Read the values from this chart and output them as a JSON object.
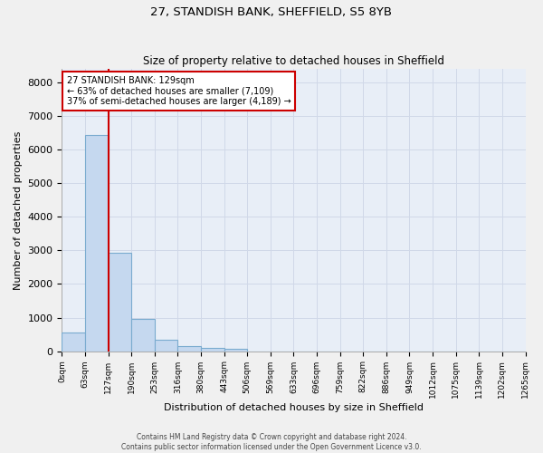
{
  "title1": "27, STANDISH BANK, SHEFFIELD, S5 8YB",
  "title2": "Size of property relative to detached houses in Sheffield",
  "xlabel": "Distribution of detached houses by size in Sheffield",
  "ylabel": "Number of detached properties",
  "bar_values": [
    557,
    6440,
    2920,
    970,
    340,
    160,
    100,
    65,
    0,
    0,
    0,
    0,
    0,
    0,
    0,
    0,
    0,
    0,
    0,
    0
  ],
  "bar_labels": [
    "0sqm",
    "63sqm",
    "127sqm",
    "190sqm",
    "253sqm",
    "316sqm",
    "380sqm",
    "443sqm",
    "506sqm",
    "569sqm",
    "633sqm",
    "696sqm",
    "759sqm",
    "822sqm",
    "886sqm",
    "949sqm",
    "1012sqm",
    "1075sqm",
    "1139sqm",
    "1202sqm",
    "1265sqm"
  ],
  "bar_color": "#c5d8ef",
  "bar_edge_color": "#7aabcf",
  "annotation_text_line1": "27 STANDISH BANK: 129sqm",
  "annotation_text_line2": "← 63% of detached houses are smaller (7,109)",
  "annotation_text_line3": "37% of semi-detached houses are larger (4,189) →",
  "annotation_box_color": "#cc0000",
  "ylim": [
    0,
    8400
  ],
  "yticks": [
    0,
    1000,
    2000,
    3000,
    4000,
    5000,
    6000,
    7000,
    8000
  ],
  "grid_color": "#d0d8e8",
  "bg_color": "#e8eef7",
  "fig_bg_color": "#f0f0f0",
  "footer_line1": "Contains HM Land Registry data © Crown copyright and database right 2024.",
  "footer_line2": "Contains public sector information licensed under the Open Government Licence v3.0."
}
